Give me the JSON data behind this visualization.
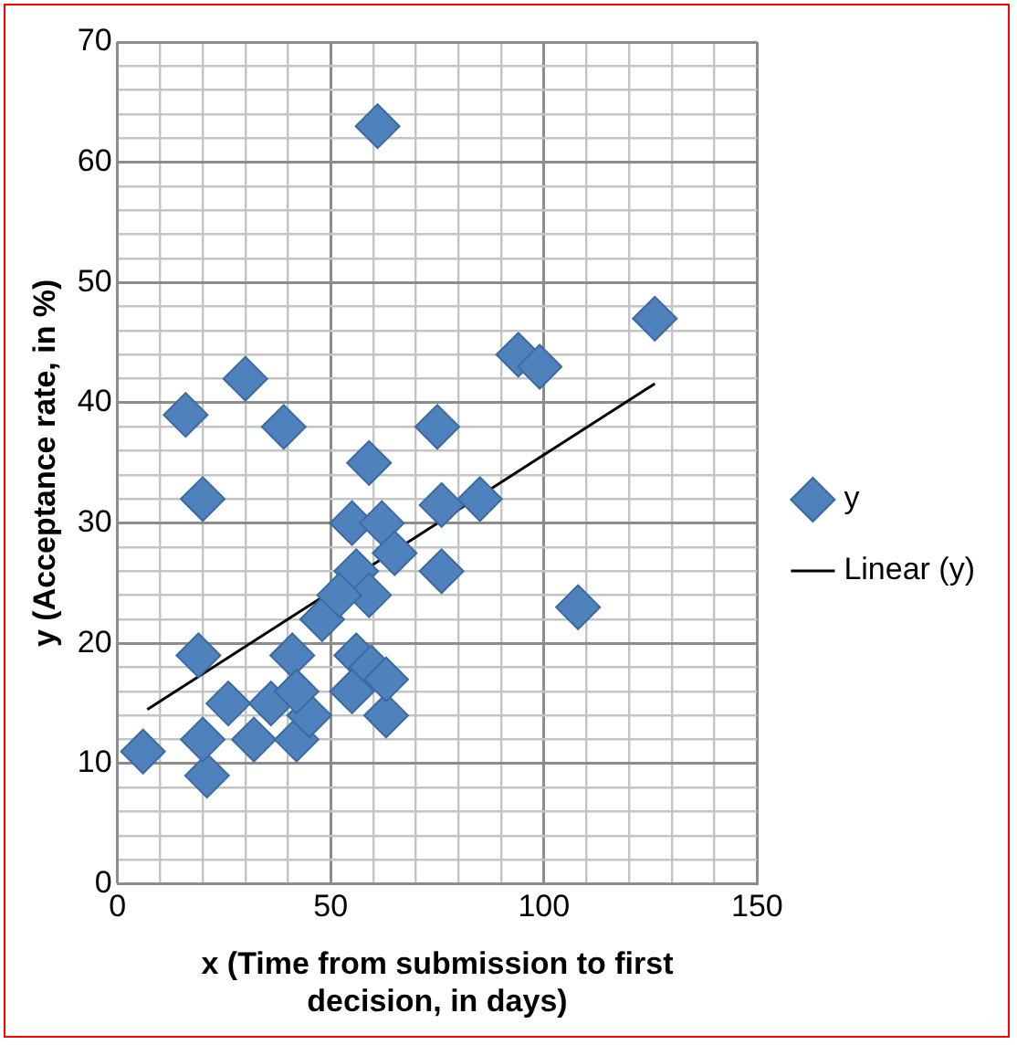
{
  "chart_data": {
    "type": "scatter",
    "xlabel": "x (Time from submission to first decision, in days)",
    "ylabel": "y (Acceptance rate, in %)",
    "xlim": [
      0,
      150
    ],
    "ylim": [
      0,
      70
    ],
    "xticks": [
      0,
      {
        "value": 10,
        "label": null
      },
      {
        "value": 20,
        "label": null
      },
      {
        "value": 30,
        "label": null
      },
      {
        "value": 40,
        "label": null
      },
      50,
      {
        "value": 60,
        "label": null
      },
      {
        "value": 70,
        "label": null
      },
      {
        "value": 80,
        "label": null
      },
      {
        "value": 90,
        "label": null
      },
      100,
      {
        "value": 110,
        "label": null
      },
      {
        "value": 120,
        "label": null
      },
      {
        "value": 130,
        "label": null
      },
      {
        "value": 140,
        "label": null
      },
      150
    ],
    "yticks": [
      0,
      {
        "value": 2,
        "label": null
      },
      {
        "value": 4,
        "label": null
      },
      {
        "value": 6,
        "label": null
      },
      {
        "value": 8,
        "label": null
      },
      10,
      {
        "value": 12,
        "label": null
      },
      {
        "value": 14,
        "label": null
      },
      {
        "value": 16,
        "label": null
      },
      {
        "value": 18,
        "label": null
      },
      20,
      {
        "value": 22,
        "label": null
      },
      {
        "value": 24,
        "label": null
      },
      {
        "value": 26,
        "label": null
      },
      {
        "value": 28,
        "label": null
      },
      30,
      {
        "value": 32,
        "label": null
      },
      {
        "value": 34,
        "label": null
      },
      {
        "value": 36,
        "label": null
      },
      {
        "value": 38,
        "label": null
      },
      40,
      {
        "value": 42,
        "label": null
      },
      {
        "value": 44,
        "label": null
      },
      {
        "value": 46,
        "label": null
      },
      {
        "value": 48,
        "label": null
      },
      50,
      {
        "value": 52,
        "label": null
      },
      {
        "value": 54,
        "label": null
      },
      {
        "value": 56,
        "label": null
      },
      {
        "value": 58,
        "label": null
      },
      60,
      {
        "value": 62,
        "label": null
      },
      {
        "value": 64,
        "label": null
      },
      {
        "value": 66,
        "label": null
      },
      {
        "value": 68,
        "label": null
      },
      70
    ],
    "grid": true,
    "legend": "right",
    "series": [
      {
        "name": "y",
        "color": "#4f81bd",
        "marker": "diamond",
        "x": [
          6,
          16,
          30,
          39,
          20,
          19,
          21,
          20,
          26,
          32,
          36,
          41,
          42,
          45,
          48,
          55,
          62,
          65,
          56,
          59,
          56,
          59.5,
          55,
          63,
          63,
          94,
          99,
          126,
          75,
          59,
          85,
          76,
          76,
          108,
          61,
          42,
          52
        ],
        "values": [
          11,
          39,
          42,
          38,
          32,
          19,
          9,
          12,
          15,
          12,
          15,
          19,
          12,
          14,
          22,
          30,
          30,
          27.5,
          26,
          24,
          19,
          18,
          16,
          14,
          17,
          44,
          43,
          47,
          38,
          35,
          32,
          31.5,
          26,
          23,
          63,
          16,
          24
        ]
      },
      {
        "name": "Linear (y)",
        "color": "#000000",
        "type": "line",
        "marker": "none",
        "x": [
          7,
          126
        ],
        "values": [
          14.5,
          41.6
        ]
      }
    ]
  }
}
